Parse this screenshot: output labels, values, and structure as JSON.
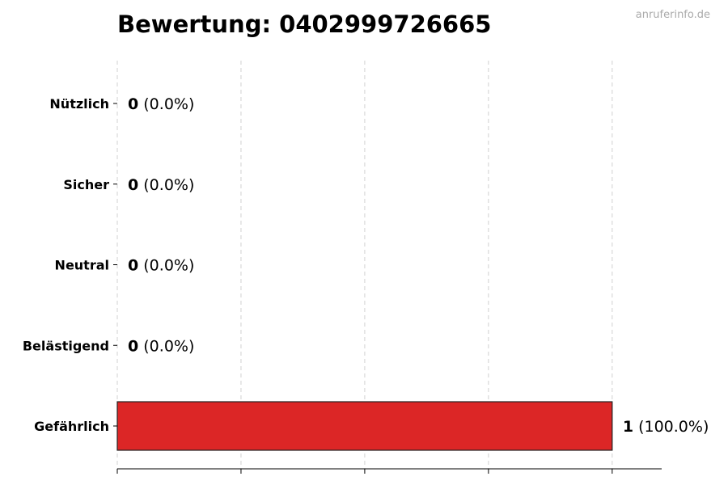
{
  "chart_data": {
    "type": "bar",
    "orientation": "horizontal",
    "title": "Bewertung: 0402999726665",
    "watermark": "anruferinfo.de",
    "categories": [
      "Nützlich",
      "Sicher",
      "Neutral",
      "Belästigend",
      "Gefährlich"
    ],
    "values": [
      0,
      0,
      0,
      0,
      1
    ],
    "labels": [
      "(0.0%)",
      "(0.0%)",
      "(0.0%)",
      "(0.0%)",
      "(100.0%)"
    ],
    "colors": [
      "#2e7d32",
      "#1565c0",
      "#9e9e9e",
      "#ef6c00",
      "#dc2626"
    ],
    "xlim": [
      0,
      1.1
    ],
    "xticks": [
      0,
      0.25,
      0.5,
      0.75,
      1.0
    ],
    "xtick_labels_shown": false,
    "grid": "x-dashed",
    "xlabel": "",
    "ylabel": ""
  }
}
